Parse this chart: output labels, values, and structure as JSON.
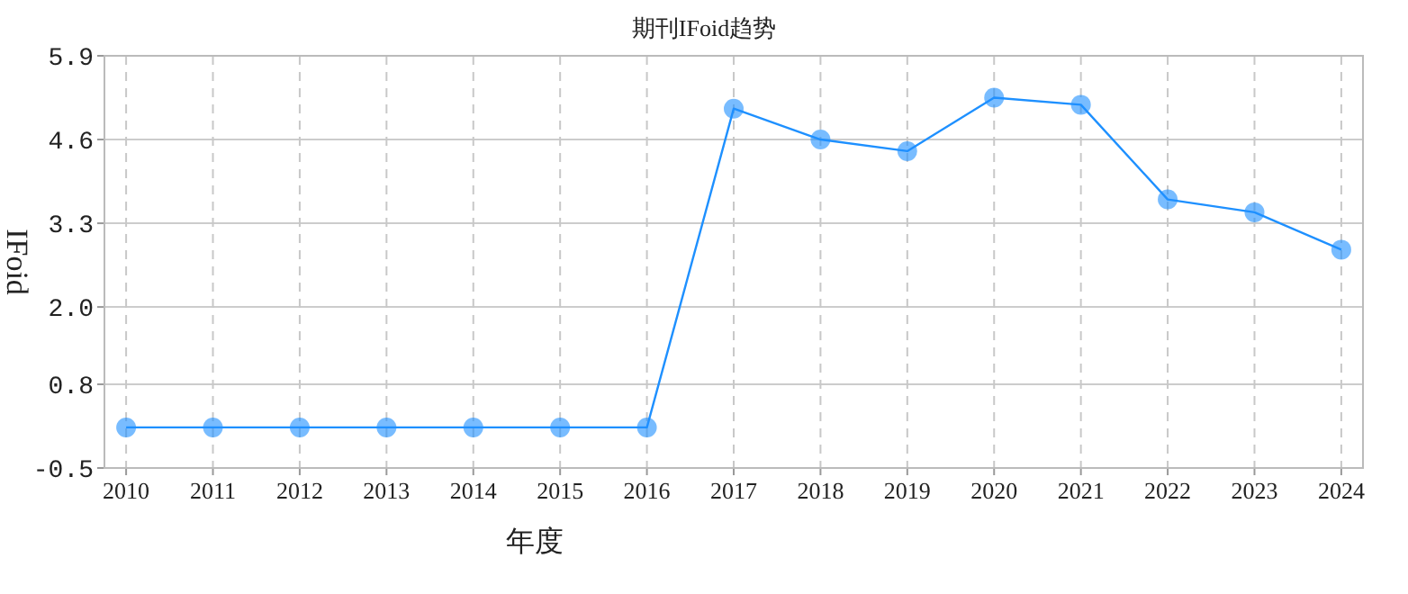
{
  "chart_data": {
    "type": "line",
    "title": "期刊IFoid趋势",
    "xlabel": "年度",
    "ylabel": "IFoid",
    "categories": [
      "2010",
      "2011",
      "2012",
      "2013",
      "2014",
      "2015",
      "2016",
      "2017",
      "2018",
      "2019",
      "2020",
      "2021",
      "2022",
      "2023",
      "2024"
    ],
    "series": [
      {
        "color": "#1e90ff",
        "values": [
          0.13,
          0.13,
          0.13,
          0.13,
          0.13,
          0.13,
          0.13,
          5.08,
          4.6,
          4.42,
          5.25,
          5.14,
          3.67,
          3.47,
          2.89
        ]
      }
    ],
    "ylim": [
      -0.5,
      5.9
    ],
    "yticks": [
      -0.5,
      0.8,
      {
        "value": 2,
        "label": "2.0"
      },
      3.3,
      4.6,
      5.9
    ],
    "grid": true,
    "marker": "circle",
    "line_style": "solid"
  }
}
